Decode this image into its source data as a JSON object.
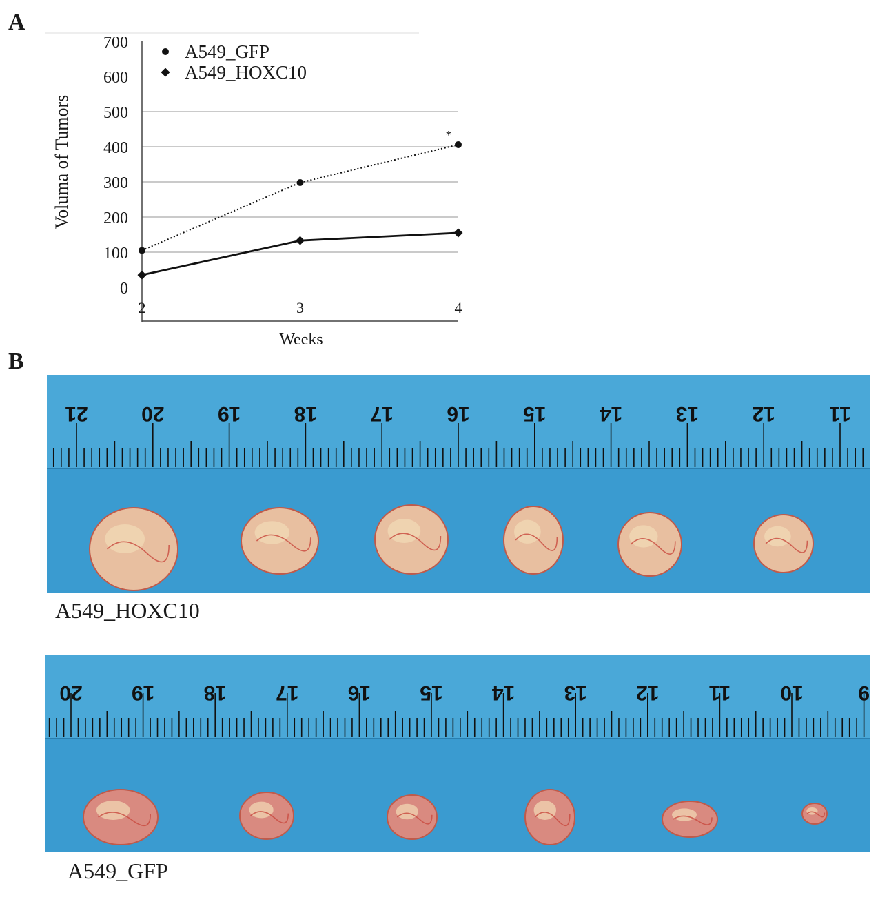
{
  "panels": {
    "a_label": "A",
    "b_label": "B"
  },
  "chart_data": {
    "type": "line",
    "title": "",
    "xlabel": "Weeks",
    "ylabel": "Voluma of Tumors",
    "x": [
      2,
      3,
      4
    ],
    "ylim": [
      0,
      700
    ],
    "yticks": [
      0,
      100,
      200,
      300,
      400,
      500,
      600,
      700
    ],
    "grid": true,
    "legend_position": "top-left",
    "series": [
      {
        "name": "A549_GFP",
        "values": [
          105,
          298,
          406
        ],
        "marker": "circle",
        "line_style": "dotted"
      },
      {
        "name": "A549_HOXC10",
        "values": [
          35,
          133,
          155
        ],
        "marker": "diamond",
        "line_style": "solid"
      }
    ],
    "annotations": [
      {
        "text": "*",
        "x": 4,
        "series": "A549_GFP"
      }
    ]
  },
  "photos": [
    {
      "caption": "A549_HOXC10",
      "ruler_labels": [
        "21",
        "20",
        "19",
        "18",
        "17",
        "16",
        "15",
        "14",
        "13",
        "12",
        "11"
      ],
      "background": "#3a9bd0",
      "tumor_color": "#e8bfa0"
    },
    {
      "caption": "A549_GFP",
      "ruler_labels": [
        "20",
        "19",
        "18",
        "17",
        "16",
        "15",
        "14",
        "13",
        "12",
        "11",
        "10",
        "9"
      ],
      "background": "#3a9bd0",
      "tumor_color": "#d98a80"
    }
  ]
}
